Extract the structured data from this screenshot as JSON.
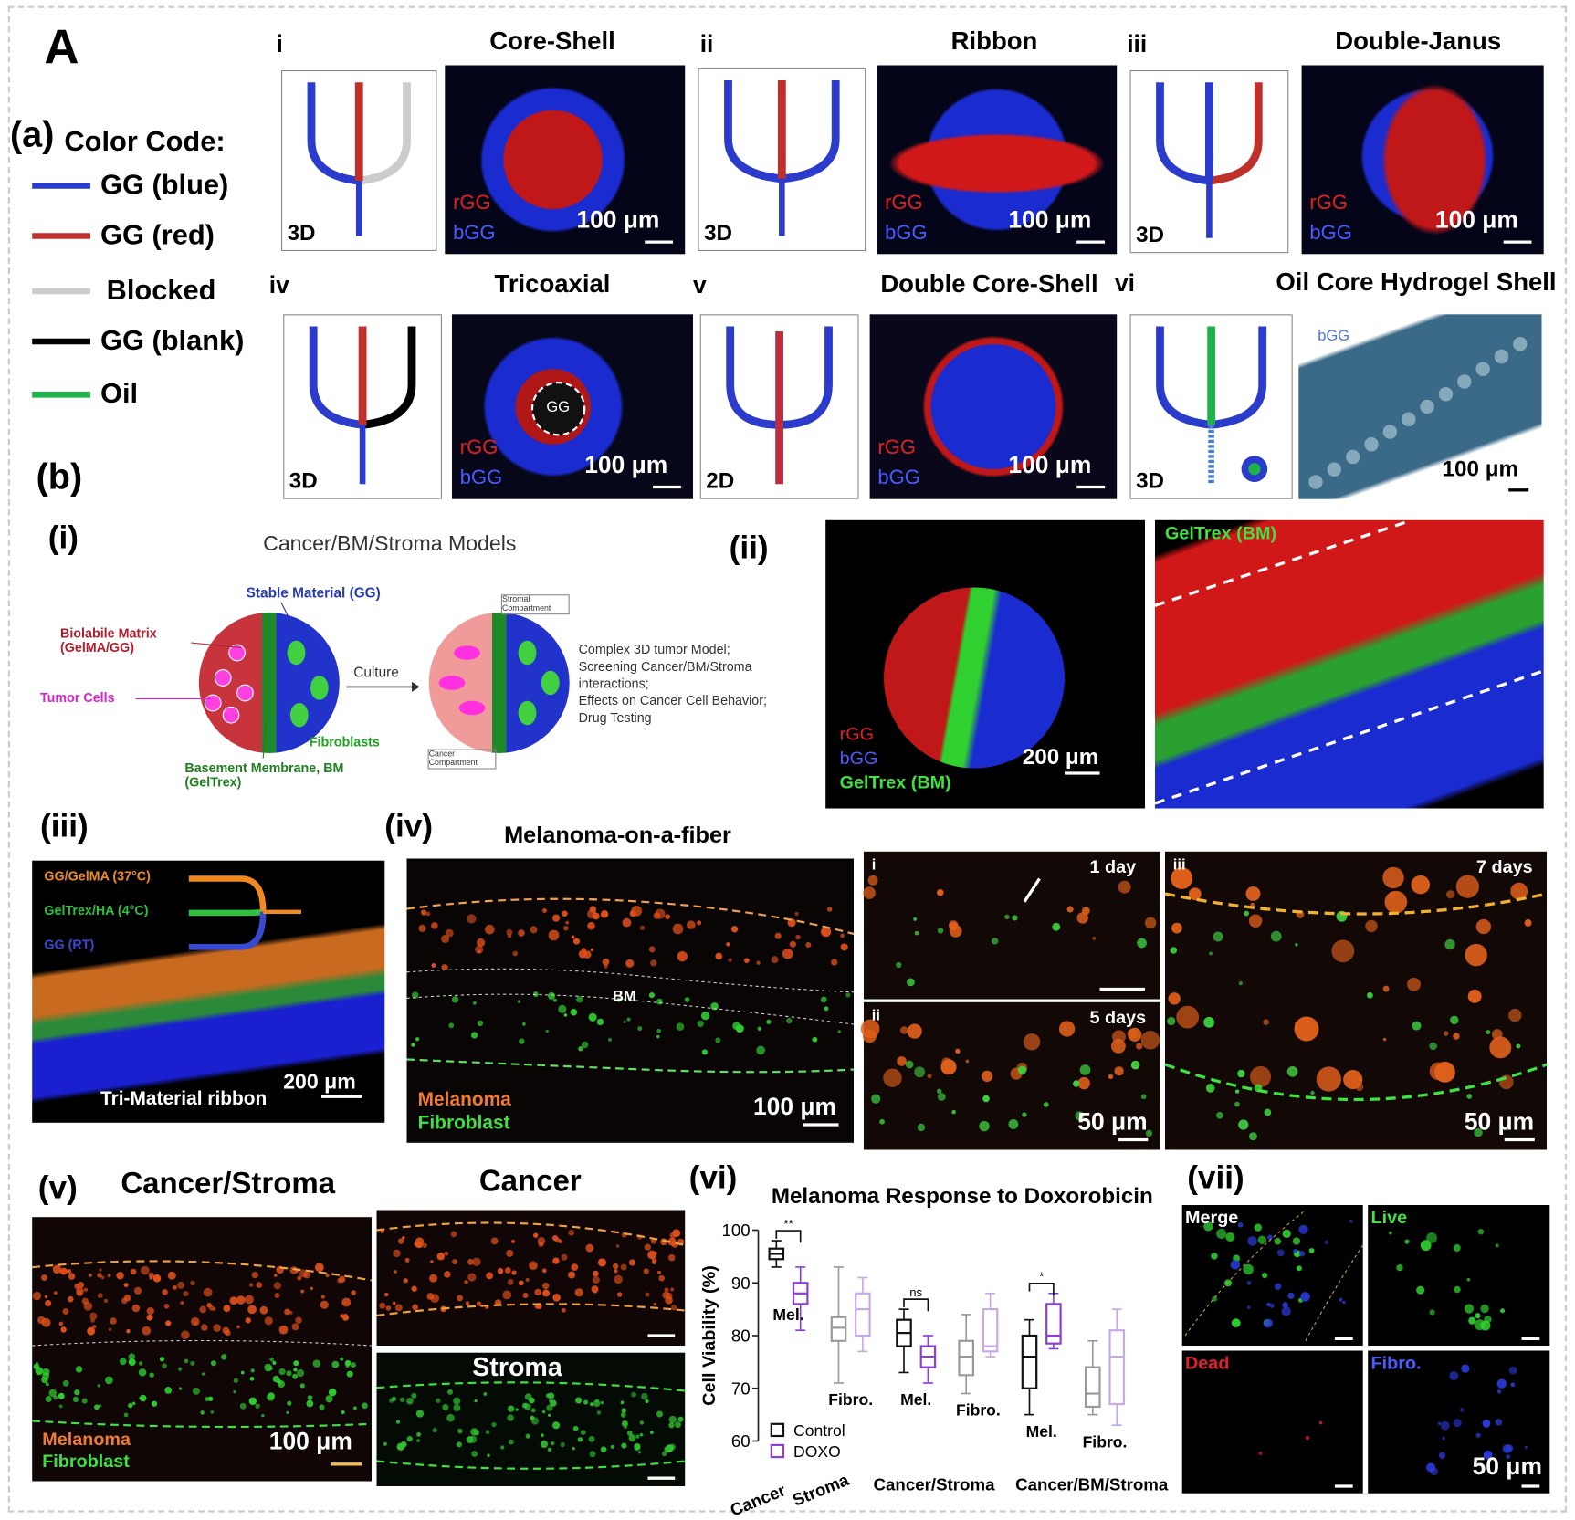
{
  "figure_label": "A",
  "color_code": {
    "label": "(a)",
    "title": "Color Code:",
    "items": [
      "GG (blue)",
      "GG (red)",
      "Blocked",
      "GG (blank)",
      "Oil"
    ]
  },
  "designs": [
    {
      "numeral": "i",
      "title": "Core-Shell",
      "dimension": "3D",
      "channels": [
        "rGG",
        "bGG"
      ],
      "scale_bar": "100 μm"
    },
    {
      "numeral": "ii",
      "title": "Ribbon",
      "dimension": "3D",
      "channels": [
        "rGG",
        "bGG"
      ],
      "scale_bar": "100 μm"
    },
    {
      "numeral": "iii",
      "title": "Double-Janus",
      "dimension": "3D",
      "channels": [
        "rGG",
        "bGG"
      ],
      "scale_bar": "100 μm"
    },
    {
      "numeral": "iv",
      "title": "Tricoaxial",
      "dimension": "3D",
      "channels": [
        "rGG",
        "bGG"
      ],
      "core": "GG",
      "scale_bar": "100 μm"
    },
    {
      "numeral": "v",
      "title": "Double Core-Shell",
      "dimension": "2D",
      "channels": [
        "rGG",
        "bGG"
      ],
      "scale_bar": "100 μm"
    },
    {
      "numeral": "vi",
      "title": "Oil Core Hydrogel Shell",
      "dimension": "3D",
      "channels": [
        "bGG"
      ],
      "scale_bar": "100 μm"
    }
  ],
  "panel_b": {
    "label": "(b)",
    "i": {
      "label": "(i)",
      "title": "Cancer/BM/Stroma Models",
      "stable": "Stable Material (GG)",
      "biolabile": "Biolabile Matrix (GelMA/GG)",
      "tumor": "Tumor Cells",
      "fibroblasts": "Fibroblasts",
      "bm": "Basement Membrane, BM (GelTrex)",
      "culture": "Culture",
      "stromal": "Stromal Compartment",
      "cancer_compartment": "Cancer Compartment",
      "description": [
        "Complex 3D tumor Model;",
        "Screening Cancer/BM/Stroma",
        "interactions;",
        "Effects on Cancer Cell Behavior;",
        "Drug Testing"
      ]
    },
    "ii": {
      "label": "(ii)",
      "channels": [
        "rGG",
        "bGG",
        "GelTrex (BM)"
      ],
      "scale_bar": "200 μm",
      "fiber_label": "GelTrex (BM)"
    },
    "iii": {
      "label": "(iii)",
      "inlets": [
        "GG/GelMA (37°C)",
        "GelTrex/HA (4°C)",
        "GG (RT)"
      ],
      "caption": "Tri-Material ribbon",
      "scale_bar": "200 μm"
    },
    "iv": {
      "label": "(iv)",
      "title": "Melanoma-on-a-fiber",
      "bm": "BM",
      "legend": [
        "Melanoma",
        "Fibroblast"
      ],
      "scale_bar": "100 μm",
      "timepoints": [
        {
          "numeral": "i",
          "time": "1 day"
        },
        {
          "numeral": "ii",
          "time": "5 days",
          "scale_bar": "50 μm"
        },
        {
          "numeral": "iii",
          "time": "7 days",
          "scale_bar": "50 μm"
        }
      ]
    },
    "v": {
      "label": "(v)",
      "title": "Cancer/Stroma",
      "legend": [
        "Melanoma",
        "Fibroblast"
      ],
      "scale_bar": "100 μm",
      "cancer": "Cancer",
      "stroma": "Stroma"
    },
    "vi": {
      "label": "(vi)"
    },
    "vii": {
      "label": "(vii)",
      "channels": [
        "Merge",
        "Live",
        "Dead",
        "Fibro."
      ],
      "scale_bar": "50 μm"
    }
  },
  "chart_data": {
    "type": "box",
    "title": "Melanoma Response to Doxorobicin",
    "y_label": "Cell Viability (%)",
    "ylim": [
      60,
      100
    ],
    "yticks": [
      60,
      70,
      80,
      90,
      100
    ],
    "categories": [
      "Cancer",
      "Stroma",
      "Cancer/Stroma",
      "Cancer/BM/Stroma"
    ],
    "groups": [
      "Mel.",
      "Fibro.",
      "Mel.",
      "Fibro.",
      "Mel.",
      "Fibro."
    ],
    "significance": [
      "**",
      "ns",
      "*"
    ],
    "series": [
      {
        "name": "Control",
        "color": "#111111",
        "values": [
          {
            "min": 93,
            "q1": 94.5,
            "median": 95.5,
            "q3": 96.5,
            "max": 98
          },
          {
            "min": 71,
            "q1": 79,
            "median": 81.5,
            "q3": 83.5,
            "max": 93
          },
          {
            "min": 73,
            "q1": 78,
            "median": 80.5,
            "q3": 83,
            "max": 85
          },
          {
            "min": 69,
            "q1": 72.5,
            "median": 76,
            "q3": 79,
            "max": 84
          },
          {
            "min": 65,
            "q1": 70,
            "median": 76,
            "q3": 80,
            "max": 83
          },
          {
            "min": 65,
            "q1": 66.5,
            "median": 69,
            "q3": 74,
            "max": 79
          }
        ]
      },
      {
        "name": "DOXO",
        "color": "#8a3fd6",
        "values": [
          {
            "min": 81,
            "q1": 86,
            "median": 88,
            "q3": 90,
            "max": 93
          },
          {
            "min": 77,
            "q1": 80,
            "median": 85,
            "q3": 88,
            "max": 91
          },
          {
            "min": 71,
            "q1": 74,
            "median": 76,
            "q3": 78,
            "max": 80
          },
          {
            "min": 76,
            "q1": 77,
            "median": 78,
            "q3": 85,
            "max": 88
          },
          {
            "min": 77.5,
            "q1": 78.5,
            "median": 80,
            "q3": 86,
            "max": 88
          },
          {
            "min": 63,
            "q1": 67,
            "median": 76,
            "q3": 81,
            "max": 85
          }
        ]
      }
    ]
  }
}
